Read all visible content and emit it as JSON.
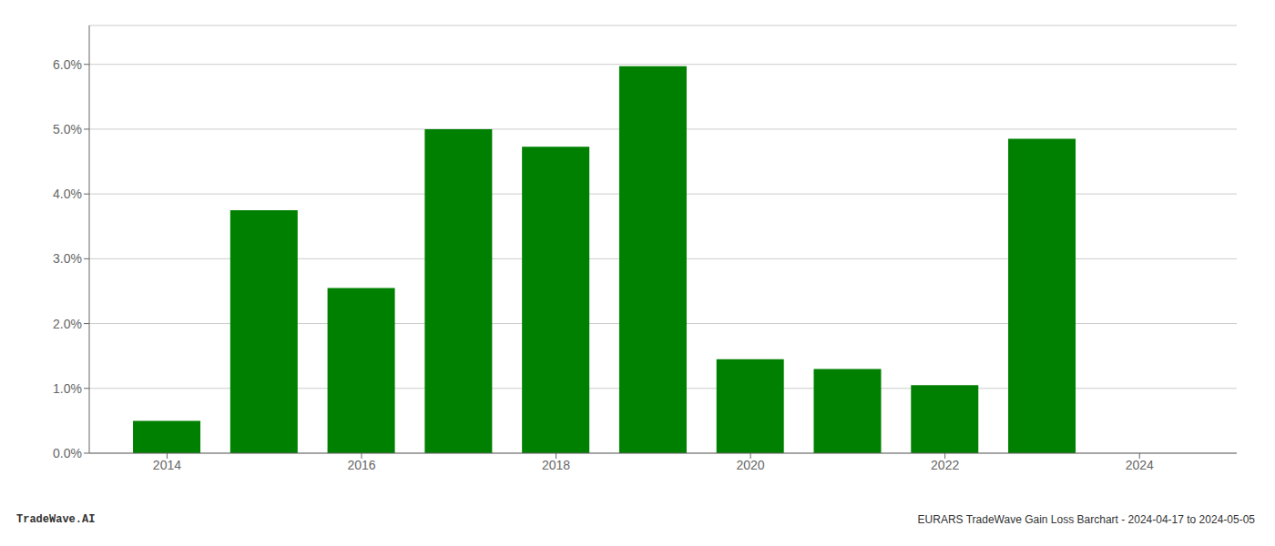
{
  "chart_data": {
    "type": "bar",
    "x": [
      2014,
      2015,
      2016,
      2017,
      2018,
      2019,
      2020,
      2021,
      2022,
      2023
    ],
    "values": [
      0.005,
      0.0375,
      0.0255,
      0.05,
      0.0473,
      0.0597,
      0.0145,
      0.013,
      0.0105,
      0.0485
    ],
    "color": "#008000",
    "xlim": [
      2013.2,
      2025.0
    ],
    "xticks": [
      2014,
      2016,
      2018,
      2020,
      2022,
      2024
    ],
    "ylim": [
      0,
      0.066
    ],
    "yticks": [
      {
        "value": 0.0,
        "label": "0.0%"
      },
      {
        "value": 0.01,
        "label": "1.0%"
      },
      {
        "value": 0.02,
        "label": "2.0%"
      },
      {
        "value": 0.03,
        "label": "3.0%"
      },
      {
        "value": 0.04,
        "label": "4.0%"
      },
      {
        "value": 0.05,
        "label": "5.0%"
      },
      {
        "value": 0.06,
        "label": "6.0%"
      }
    ],
    "grid": true,
    "annotations": [
      "TradeWave.AI",
      "EURARS TradeWave Gain Loss Barchart - 2024-04-17 to 2024-05-05"
    ]
  }
}
